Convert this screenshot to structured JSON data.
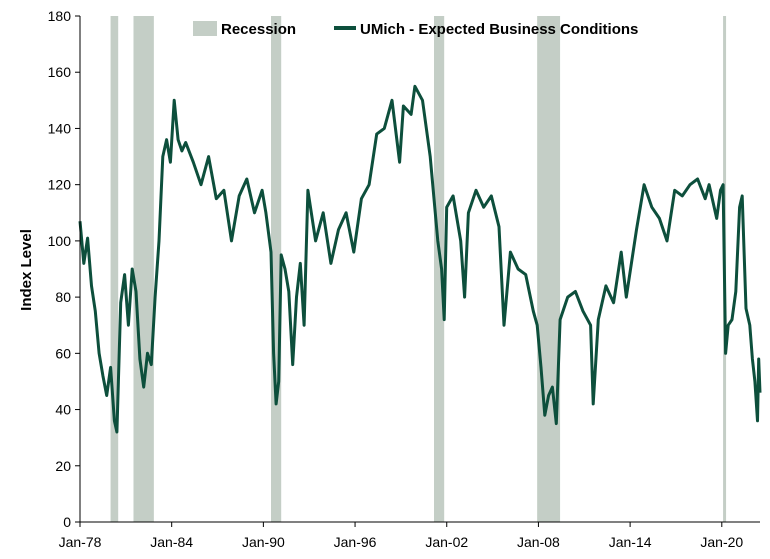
{
  "chart_data": {
    "type": "line",
    "ylabel": "Index Level",
    "ylim": [
      0,
      180
    ],
    "yticks": [
      0,
      20,
      40,
      60,
      80,
      100,
      120,
      140,
      160,
      180
    ],
    "xlim": [
      "1978-01",
      "2022-07"
    ],
    "xticks": [
      {
        "date": "1978-01",
        "label": "Jan-78"
      },
      {
        "date": "1984-01",
        "label": "Jan-84"
      },
      {
        "date": "1990-01",
        "label": "Jan-90"
      },
      {
        "date": "1996-01",
        "label": "Jan-96"
      },
      {
        "date": "2002-01",
        "label": "Jan-02"
      },
      {
        "date": "2008-01",
        "label": "Jan-08"
      },
      {
        "date": "2014-01",
        "label": "Jan-14"
      },
      {
        "date": "2020-01",
        "label": "Jan-20"
      }
    ],
    "grid": false,
    "legend_position": "top",
    "colors": {
      "line": "#0d4f3c",
      "recession": "#c4cec6",
      "axis": "#000000"
    },
    "recessions": [
      {
        "start": "1980-01",
        "end": "1980-07"
      },
      {
        "start": "1981-07",
        "end": "1982-11"
      },
      {
        "start": "1990-07",
        "end": "1991-03"
      },
      {
        "start": "2001-03",
        "end": "2001-11"
      },
      {
        "start": "2007-12",
        "end": "2009-06"
      },
      {
        "start": "2020-02",
        "end": "2020-04"
      }
    ],
    "series": [
      {
        "name": "UMich - Expected Business Conditions",
        "points": [
          [
            "1978-01",
            107
          ],
          [
            "1978-04",
            92
          ],
          [
            "1978-07",
            101
          ],
          [
            "1978-10",
            84
          ],
          [
            "1979-01",
            75
          ],
          [
            "1979-04",
            60
          ],
          [
            "1979-07",
            52
          ],
          [
            "1979-10",
            45
          ],
          [
            "1980-01",
            55
          ],
          [
            "1980-04",
            36
          ],
          [
            "1980-06",
            32
          ],
          [
            "1980-09",
            78
          ],
          [
            "1980-12",
            88
          ],
          [
            "1981-03",
            70
          ],
          [
            "1981-06",
            90
          ],
          [
            "1981-09",
            82
          ],
          [
            "1981-12",
            58
          ],
          [
            "1982-03",
            48
          ],
          [
            "1982-06",
            60
          ],
          [
            "1982-09",
            56
          ],
          [
            "1982-12",
            80
          ],
          [
            "1983-03",
            100
          ],
          [
            "1983-06",
            130
          ],
          [
            "1983-09",
            136
          ],
          [
            "1983-12",
            128
          ],
          [
            "1984-03",
            150
          ],
          [
            "1984-06",
            136
          ],
          [
            "1984-09",
            132
          ],
          [
            "1984-12",
            135
          ],
          [
            "1985-06",
            128
          ],
          [
            "1985-12",
            120
          ],
          [
            "1986-06",
            130
          ],
          [
            "1986-12",
            115
          ],
          [
            "1987-06",
            118
          ],
          [
            "1987-12",
            100
          ],
          [
            "1988-06",
            116
          ],
          [
            "1988-12",
            122
          ],
          [
            "1989-06",
            110
          ],
          [
            "1989-12",
            118
          ],
          [
            "1990-03",
            110
          ],
          [
            "1990-07",
            96
          ],
          [
            "1990-09",
            60
          ],
          [
            "1990-11",
            42
          ],
          [
            "1991-01",
            50
          ],
          [
            "1991-03",
            95
          ],
          [
            "1991-06",
            90
          ],
          [
            "1991-09",
            82
          ],
          [
            "1991-12",
            56
          ],
          [
            "1992-03",
            80
          ],
          [
            "1992-06",
            92
          ],
          [
            "1992-09",
            70
          ],
          [
            "1992-12",
            118
          ],
          [
            "1993-06",
            100
          ],
          [
            "1993-12",
            110
          ],
          [
            "1994-06",
            92
          ],
          [
            "1994-12",
            104
          ],
          [
            "1995-06",
            110
          ],
          [
            "1995-12",
            96
          ],
          [
            "1996-06",
            115
          ],
          [
            "1996-12",
            120
          ],
          [
            "1997-06",
            138
          ],
          [
            "1997-12",
            140
          ],
          [
            "1998-06",
            150
          ],
          [
            "1998-12",
            128
          ],
          [
            "1999-03",
            148
          ],
          [
            "1999-09",
            145
          ],
          [
            "1999-12",
            155
          ],
          [
            "2000-06",
            150
          ],
          [
            "2000-12",
            130
          ],
          [
            "2001-03",
            115
          ],
          [
            "2001-06",
            100
          ],
          [
            "2001-09",
            90
          ],
          [
            "2001-11",
            72
          ],
          [
            "2002-01",
            112
          ],
          [
            "2002-06",
            116
          ],
          [
            "2002-12",
            100
          ],
          [
            "2003-03",
            80
          ],
          [
            "2003-06",
            110
          ],
          [
            "2003-12",
            118
          ],
          [
            "2004-06",
            112
          ],
          [
            "2004-12",
            116
          ],
          [
            "2005-06",
            105
          ],
          [
            "2005-10",
            70
          ],
          [
            "2006-03",
            96
          ],
          [
            "2006-09",
            90
          ],
          [
            "2007-03",
            88
          ],
          [
            "2007-09",
            75
          ],
          [
            "2007-12",
            70
          ],
          [
            "2008-03",
            55
          ],
          [
            "2008-06",
            38
          ],
          [
            "2008-09",
            45
          ],
          [
            "2008-12",
            48
          ],
          [
            "2009-03",
            35
          ],
          [
            "2009-06",
            72
          ],
          [
            "2009-12",
            80
          ],
          [
            "2010-06",
            82
          ],
          [
            "2010-12",
            75
          ],
          [
            "2011-06",
            70
          ],
          [
            "2011-08",
            42
          ],
          [
            "2011-12",
            72
          ],
          [
            "2012-06",
            84
          ],
          [
            "2012-12",
            78
          ],
          [
            "2013-06",
            96
          ],
          [
            "2013-10",
            80
          ],
          [
            "2014-06",
            104
          ],
          [
            "2014-12",
            120
          ],
          [
            "2015-06",
            112
          ],
          [
            "2015-12",
            108
          ],
          [
            "2016-06",
            100
          ],
          [
            "2016-12",
            118
          ],
          [
            "2017-06",
            116
          ],
          [
            "2017-12",
            120
          ],
          [
            "2018-06",
            122
          ],
          [
            "2018-12",
            115
          ],
          [
            "2019-03",
            120
          ],
          [
            "2019-09",
            108
          ],
          [
            "2019-12",
            118
          ],
          [
            "2020-02",
            120
          ],
          [
            "2020-04",
            60
          ],
          [
            "2020-06",
            70
          ],
          [
            "2020-09",
            72
          ],
          [
            "2020-12",
            82
          ],
          [
            "2021-03",
            112
          ],
          [
            "2021-05",
            116
          ],
          [
            "2021-08",
            76
          ],
          [
            "2021-11",
            70
          ],
          [
            "2022-01",
            58
          ],
          [
            "2022-03",
            50
          ],
          [
            "2022-05",
            36
          ],
          [
            "2022-06",
            58
          ],
          [
            "2022-07",
            46
          ]
        ]
      }
    ],
    "legend": {
      "recession_label": "Recession",
      "series_label": "UMich - Expected Business Conditions"
    }
  }
}
